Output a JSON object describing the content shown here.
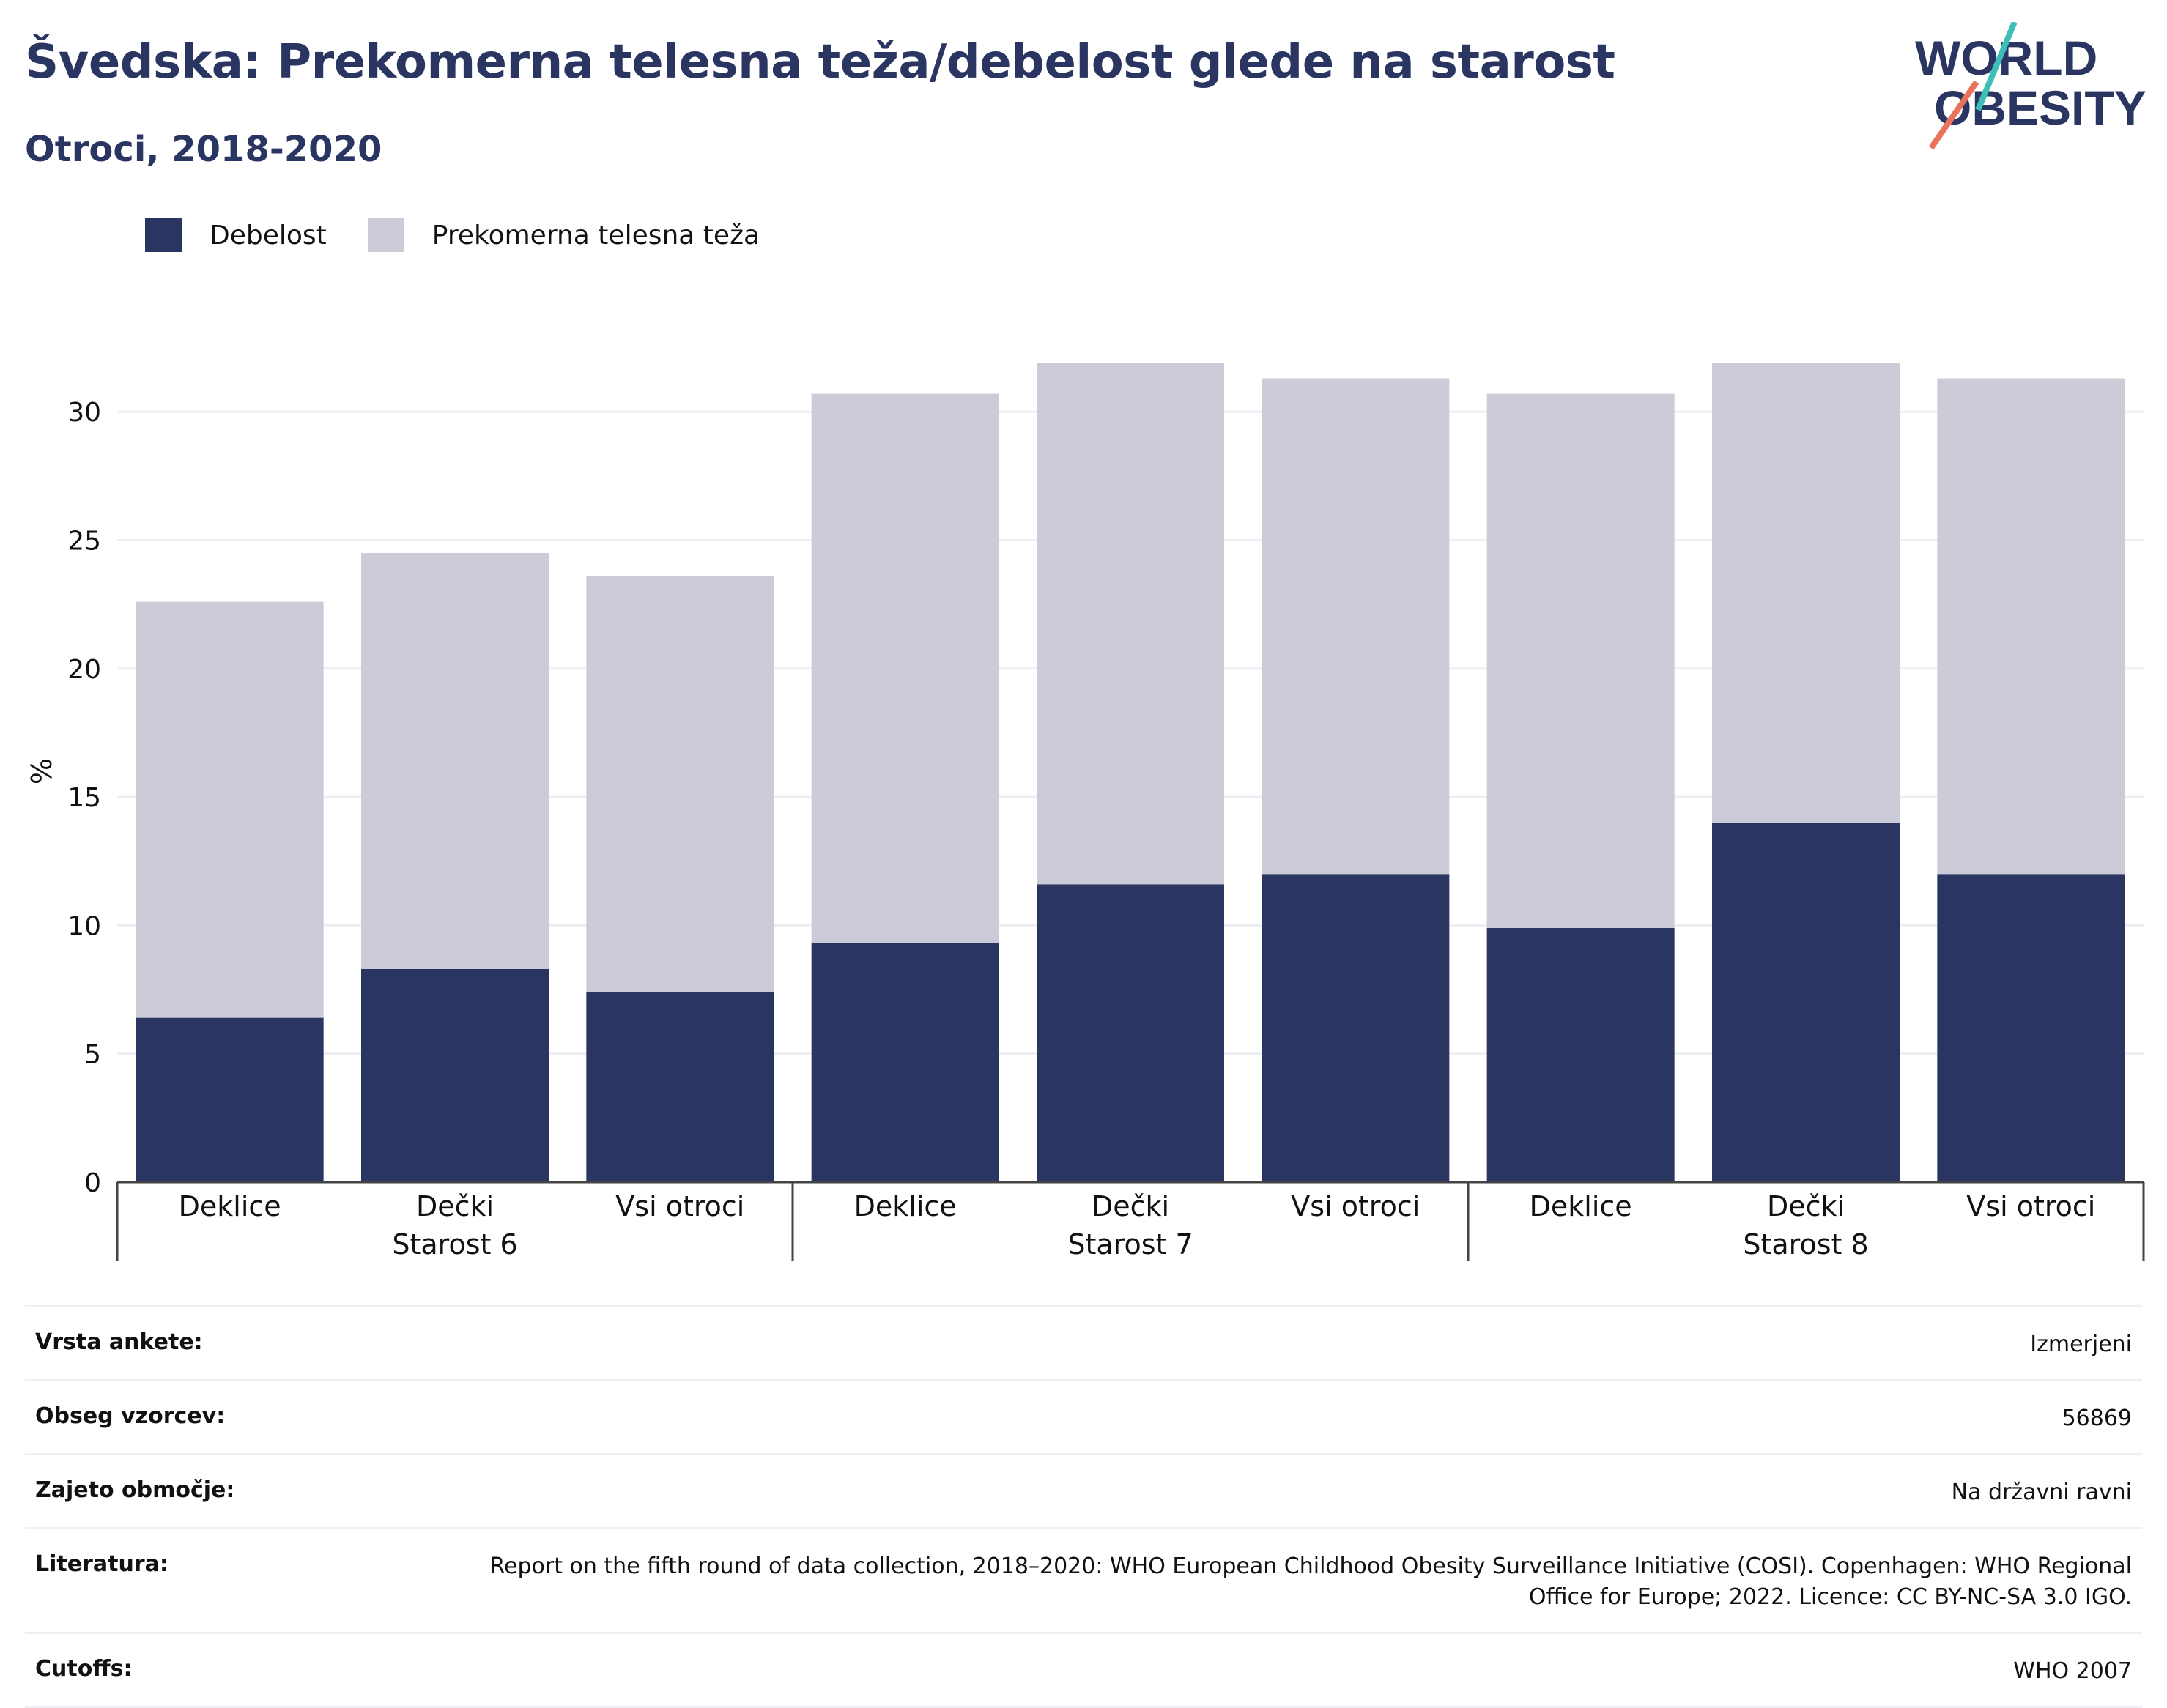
{
  "title": "Švedska: Prekomerna telesna teža/debelost glede na starost",
  "subtitle": "Otroci, 2018-2020",
  "logo": {
    "line1": "WORLD",
    "line2": "OBESITY"
  },
  "colors": {
    "obesity": "#2b3562",
    "overweight": "#cbccd8",
    "title": "#2b3562",
    "logo_teal": "#3dbfb8",
    "logo_coral": "#e8735a"
  },
  "legend": [
    {
      "label": "Debelost",
      "color": "#2b3562"
    },
    {
      "label": "Prekomerna telesna teža",
      "color": "#cbccd8"
    }
  ],
  "chart_data": {
    "type": "bar",
    "stacked": true,
    "ylabel": "%",
    "ylim": [
      0,
      32
    ],
    "yticks": [
      0,
      5,
      10,
      15,
      20,
      25,
      30
    ],
    "grid": true,
    "legend_position": "top-left",
    "groups": [
      "Starost 6",
      "Starost 7",
      "Starost 8"
    ],
    "categories": [
      "Deklice",
      "Dečki",
      "Vsi otroci",
      "Deklice",
      "Dečki",
      "Vsi otroci",
      "Deklice",
      "Dečki",
      "Vsi otroci"
    ],
    "series": [
      {
        "name": "Debelost",
        "values": [
          6.4,
          8.3,
          7.4,
          9.3,
          11.6,
          12.0,
          9.9,
          14.0,
          12.0
        ]
      },
      {
        "name": "Prekomerna telesna teža",
        "values": [
          16.2,
          16.2,
          16.2,
          21.4,
          20.3,
          19.3,
          20.8,
          17.9,
          19.3
        ]
      }
    ]
  },
  "table": [
    {
      "key": "Vrsta ankete:",
      "value": "Izmerjeni"
    },
    {
      "key": "Obseg vzorcev:",
      "value": "56869"
    },
    {
      "key": "Zajeto območje:",
      "value": "Na državni ravni"
    },
    {
      "key": "Literatura:",
      "value": "Report on the fifth round of data collection, 2018–2020: WHO European Childhood Obesity Surveillance Initiative (COSI). Copenhagen: WHO Regional Office for Europe; 2022. Licence: CC BY-NC-SA 3.0 IGO."
    },
    {
      "key": "Cutoffs:",
      "value": "WHO 2007"
    }
  ]
}
